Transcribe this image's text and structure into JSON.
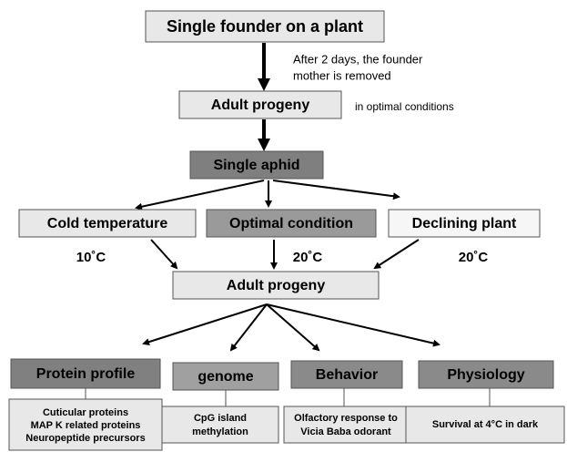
{
  "nodes": [
    {
      "label": "Single founder on a plant"
    },
    {
      "label": "Adult progeny"
    },
    {
      "label": "Single aphid"
    },
    {
      "label": "Cold temperature"
    },
    {
      "label": "Optimal condition"
    },
    {
      "label": "Declining plant"
    },
    {
      "label": "Adult progeny"
    },
    {
      "label": "Protein profile",
      "details": [
        "Cuticular proteins",
        "MAP K related proteins",
        "Neuropeptide precursors"
      ]
    },
    {
      "label": "genome",
      "details": [
        "CpG island",
        "methylation"
      ]
    },
    {
      "label": "Behavior",
      "details": [
        "Olfactory response to",
        "Vicia Baba odorant"
      ]
    },
    {
      "label": "Physiology",
      "details": [
        "Survival at 4°C in dark"
      ]
    }
  ],
  "annotations": {
    "removal": [
      "After 2 days, the founder",
      "mother is removed"
    ],
    "optimal": "in   optimal conditions",
    "temperatures": [
      "10˚C",
      "20˚C",
      "20˚C"
    ]
  }
}
